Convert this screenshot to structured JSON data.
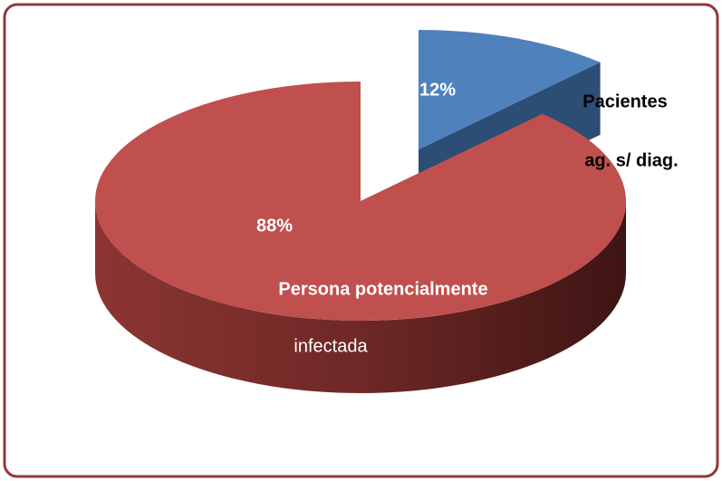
{
  "chart_data": {
    "type": "pie",
    "categories": [
      [
        "Pacientes",
        "ag. s/ diag."
      ],
      [
        "Persona potencialmente",
        "infectada"
      ]
    ],
    "values": [
      12,
      88
    ],
    "value_labels": [
      "12%",
      "88%"
    ],
    "colors": [
      "#4f81bd",
      "#c0504d"
    ]
  }
}
